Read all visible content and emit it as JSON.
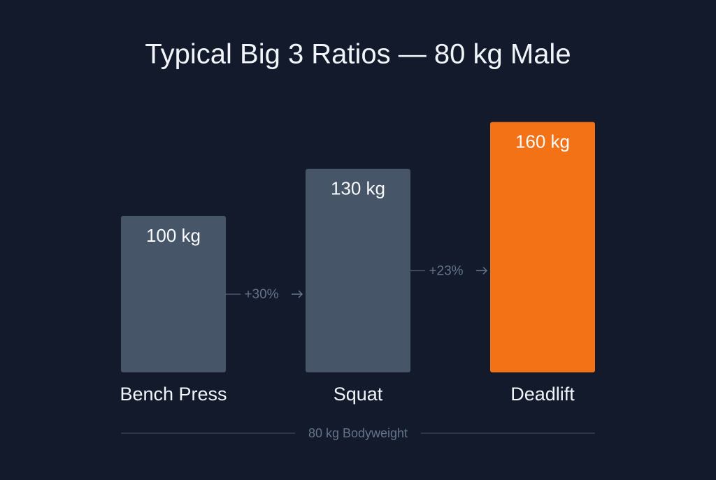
{
  "chart_data": {
    "type": "bar",
    "title": "Typical Big 3 Ratios — 80 kg Male",
    "categories": [
      "Bench Press",
      "Squat",
      "Deadlift"
    ],
    "values": [
      100,
      130,
      160
    ],
    "value_labels": [
      "100 kg",
      "130 kg",
      "160 kg"
    ],
    "colors": [
      "#475569",
      "#475569",
      "#f47216"
    ],
    "annotations": [
      "+30%",
      "+23%"
    ],
    "footnote": "80 kg Bodyweight"
  }
}
